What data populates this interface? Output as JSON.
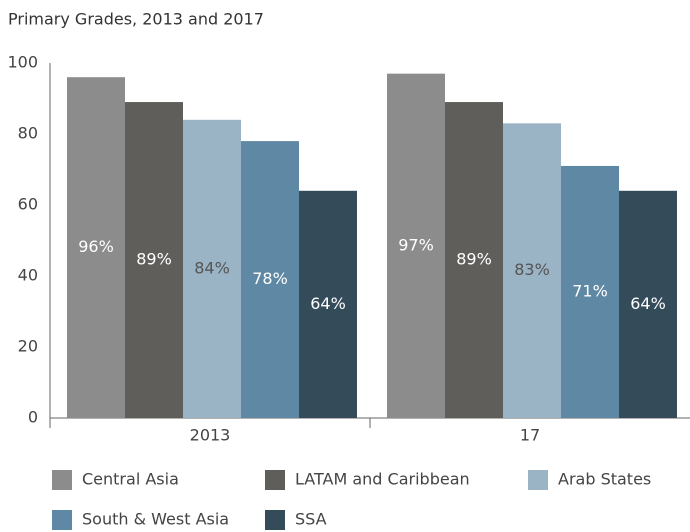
{
  "chart_data": {
    "type": "bar",
    "title": "Primary Grades, 2013 and 2017",
    "categories": [
      "2013",
      "17"
    ],
    "series": [
      {
        "name": "Central Asia",
        "color": "#8c8c8c",
        "values": [
          96,
          97
        ],
        "value_labels": [
          "96%",
          "97%"
        ],
        "label_color": "#ffffff"
      },
      {
        "name": "LATAM and Caribbean",
        "color": "#5f5e5b",
        "values": [
          89,
          89
        ],
        "value_labels": [
          "89%",
          "89%"
        ],
        "label_color": "#ffffff"
      },
      {
        "name": "Arab States",
        "color": "#9ab3c5",
        "values": [
          84,
          83
        ],
        "value_labels": [
          "84%",
          "83%"
        ],
        "label_color": "#555555"
      },
      {
        "name": "South & West Asia",
        "color": "#5e88a4",
        "values": [
          78,
          71
        ],
        "value_labels": [
          "78%",
          "71%"
        ],
        "label_color": "#ffffff"
      },
      {
        "name": "SSA",
        "color": "#344b5a",
        "values": [
          64,
          64
        ],
        "value_labels": [
          "64%",
          "64%"
        ],
        "label_color": "#ffffff"
      }
    ],
    "ylim": [
      0,
      100
    ],
    "yticks": [
      0,
      20,
      40,
      60,
      80,
      100
    ],
    "grid": false
  }
}
